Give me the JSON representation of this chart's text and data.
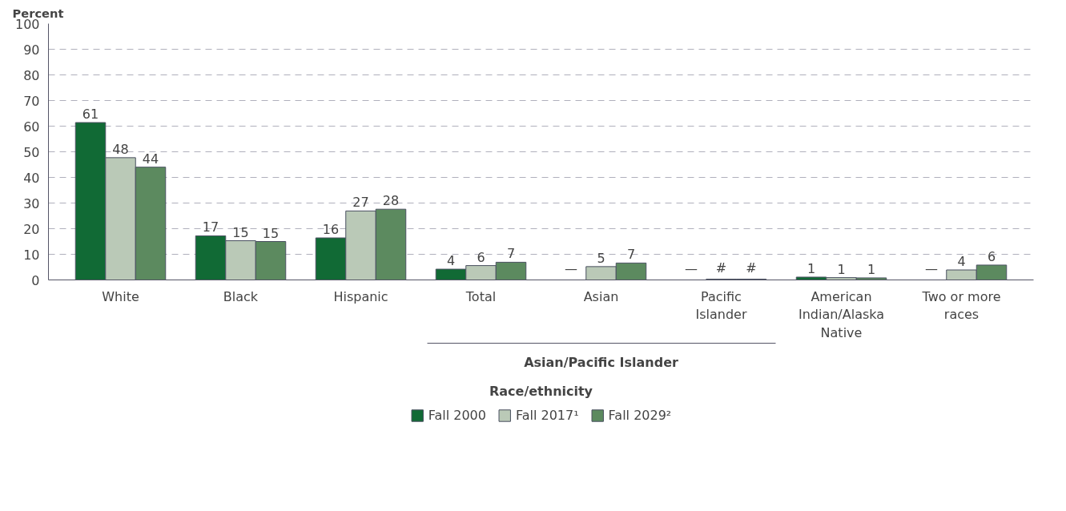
{
  "chart_data": {
    "type": "bar",
    "ylabel": "Percent",
    "xlabel": "Race/ethnicity",
    "categories": [
      "White",
      "Black",
      "Hispanic",
      "Total",
      "Asian",
      "Pacific\nIslander",
      "American\nIndian/Alaska\nNative",
      "Two or more\nraces"
    ],
    "series": [
      {
        "name": "Fall 2000",
        "color": "#116a35",
        "values": [
          61.4,
          17.2,
          16.4,
          4.2,
          null,
          null,
          1.1,
          null
        ],
        "value_labels": [
          "61",
          "17",
          "16",
          "4",
          "—",
          "—",
          "1",
          "—"
        ]
      },
      {
        "name": "Fall 2017¹",
        "color": "#bac9b7",
        "values": [
          47.7,
          15.3,
          26.9,
          5.6,
          5.2,
          0.3,
          0.9,
          3.9
        ],
        "value_labels": [
          "48",
          "15",
          "27",
          "6",
          "5",
          "#",
          "1",
          "4"
        ]
      },
      {
        "name": "Fall 2029²",
        "color": "#5c8a5f",
        "values": [
          44.0,
          15.0,
          27.6,
          6.9,
          6.6,
          0.3,
          0.8,
          5.8
        ],
        "value_labels": [
          "44",
          "15",
          "28",
          "7",
          "7",
          "#",
          "1",
          "6"
        ]
      }
    ],
    "annotations": [
      "Asian/Pacific Islander"
    ],
    "ylim": [
      0,
      100
    ],
    "yticks": [
      0,
      10,
      20,
      30,
      40,
      50,
      60,
      70,
      80,
      90,
      100
    ],
    "grid": "y",
    "legend": "bottom"
  }
}
